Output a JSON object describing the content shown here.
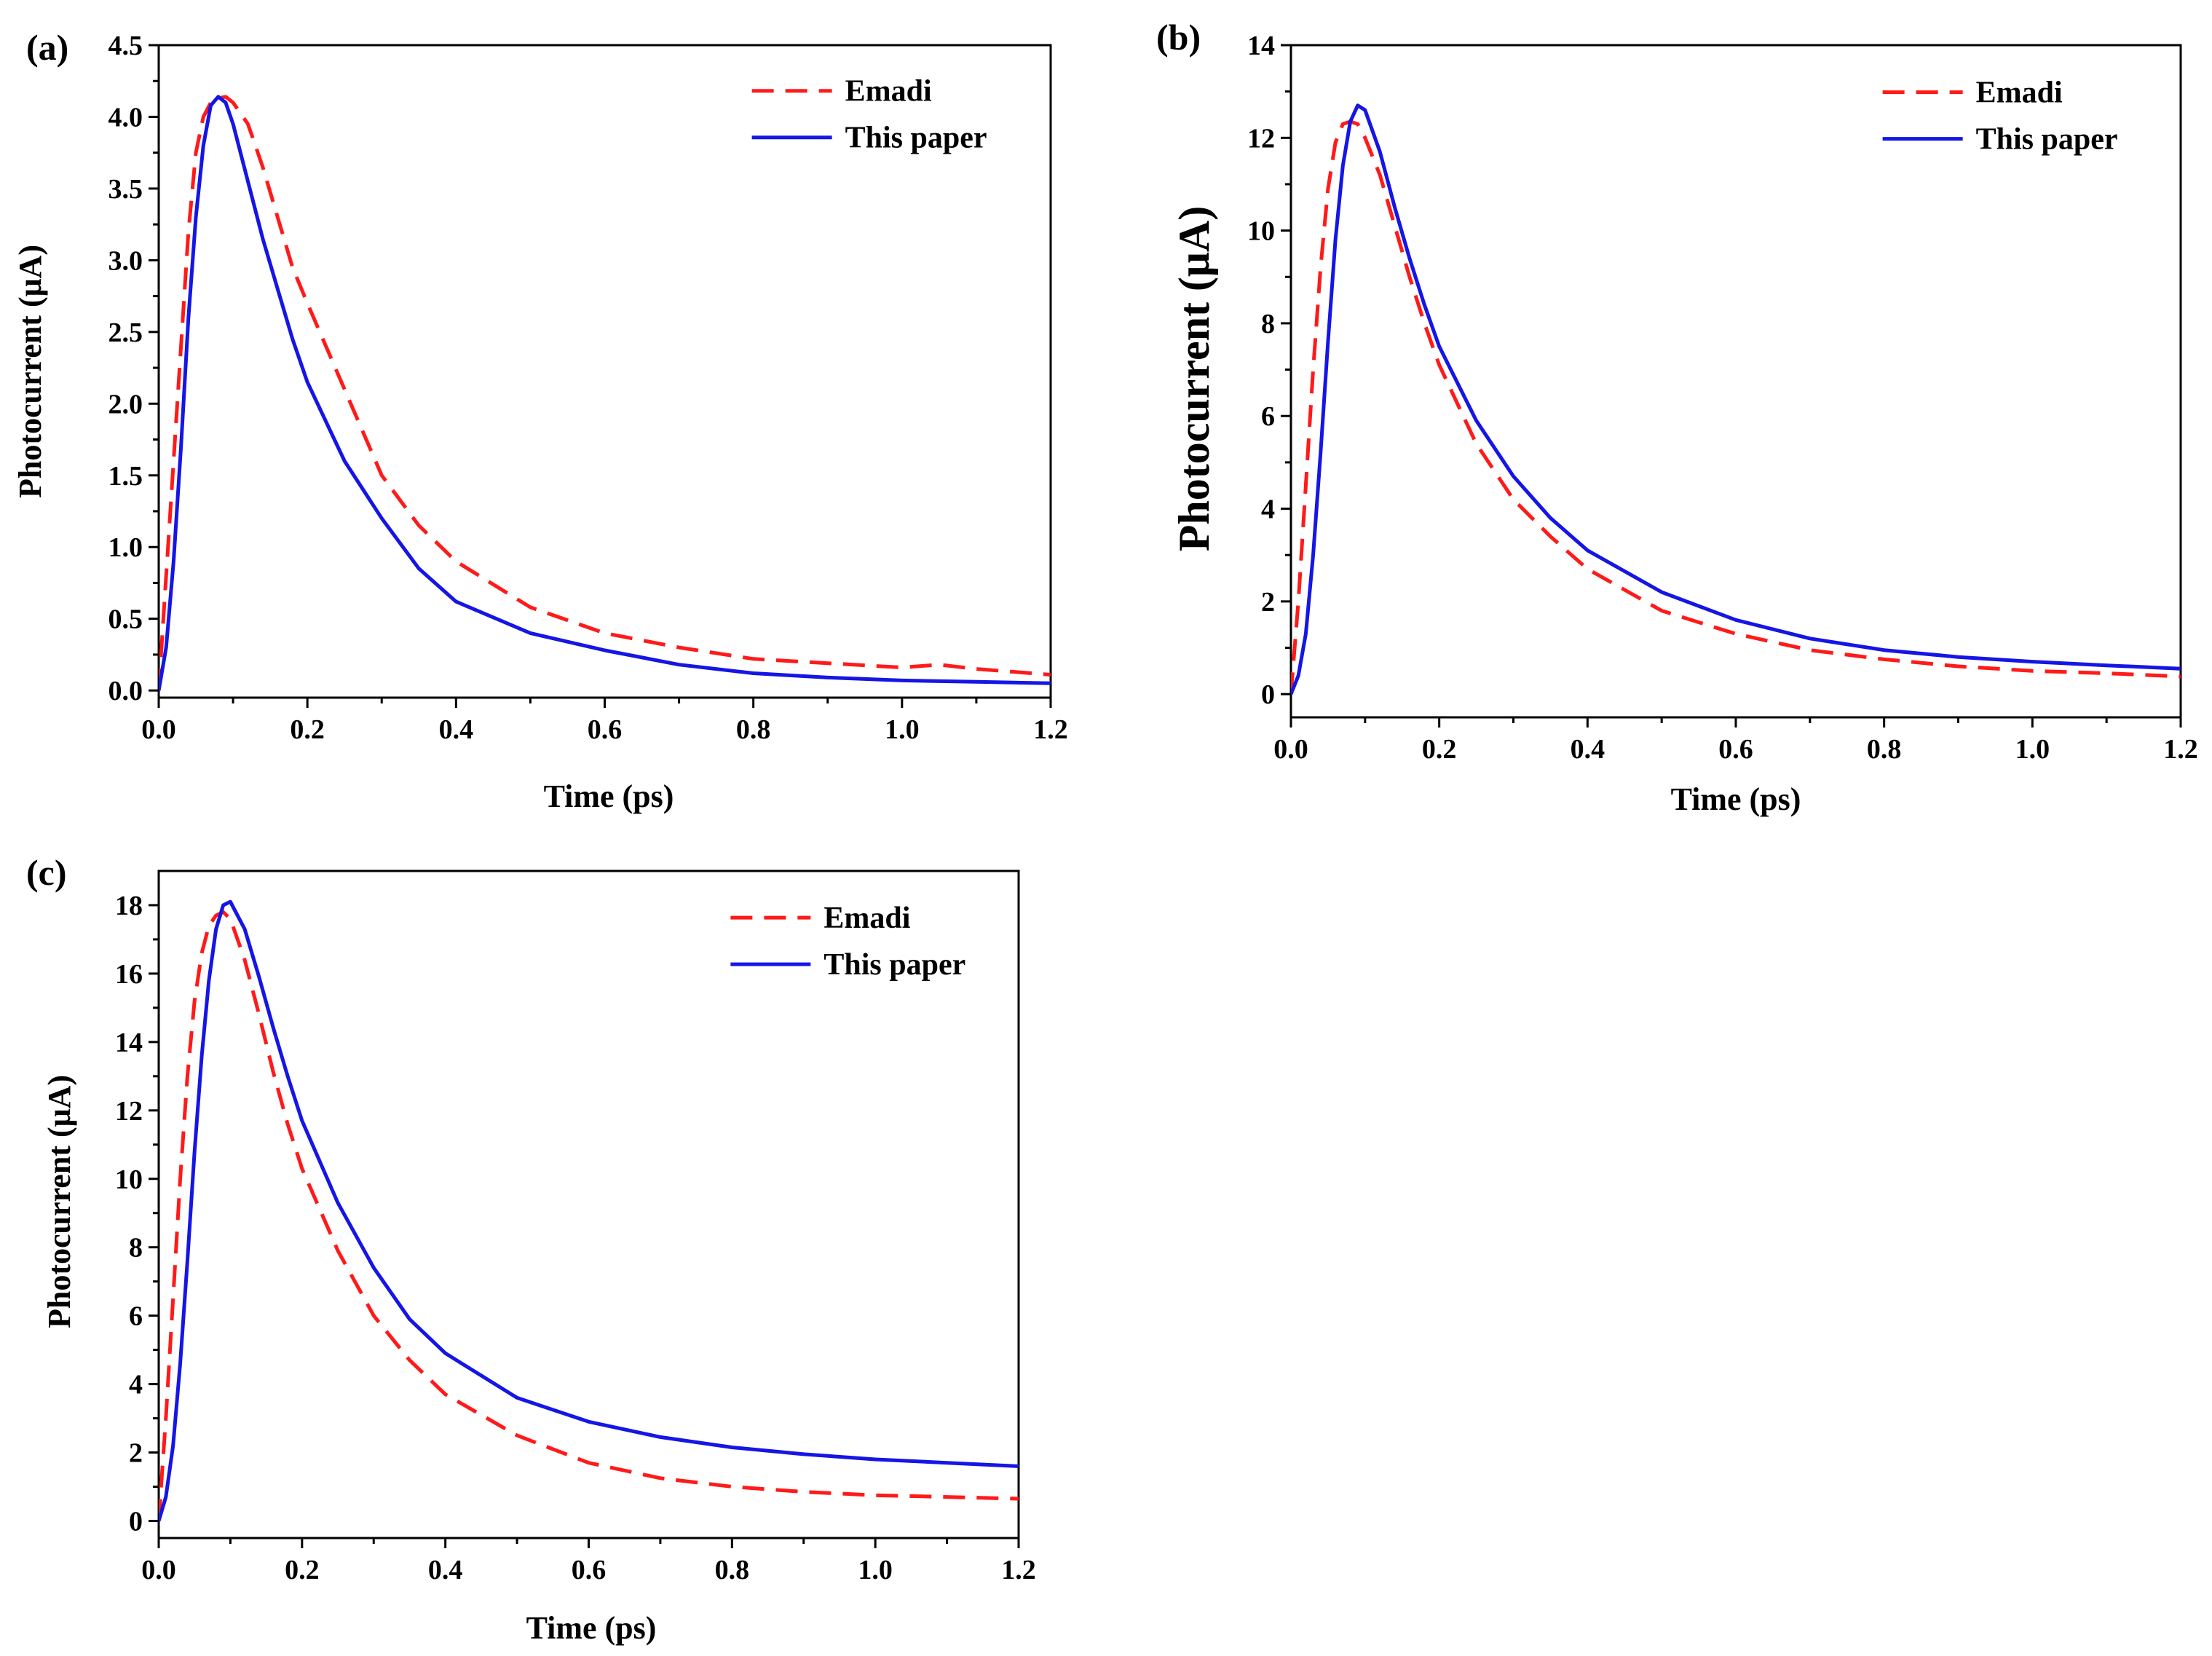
{
  "colors": {
    "emadi": "#ff1a1a",
    "this_paper": "#1515e6",
    "axes": "#000000"
  },
  "chart_data": [
    {
      "type": "line",
      "panel_label": "(a)",
      "xlabel": "Time (ps)",
      "ylabel": "Photocurrent (μA)",
      "xlim": [
        0,
        1.2
      ],
      "ylim": [
        -0.05,
        4.5
      ],
      "xticks": [
        0.0,
        0.2,
        0.4,
        0.6,
        0.8,
        1.0,
        1.2
      ],
      "xtick_labels": [
        "0.0",
        "0.2",
        "0.4",
        "0.6",
        "0.8",
        "1.0",
        "1.2"
      ],
      "yticks": [
        0.0,
        0.5,
        1.0,
        1.5,
        2.0,
        2.5,
        3.0,
        3.5,
        4.0,
        4.5
      ],
      "ytick_labels": [
        "0.0",
        "0.5",
        "1.0",
        "1.5",
        "2.0",
        "2.5",
        "3.0",
        "3.5",
        "4.0",
        "4.5"
      ],
      "legend_position": "top-right",
      "series": [
        {
          "name": "Emadi",
          "style": "dashed",
          "color": "#ff1a1a",
          "x": [
            0,
            0.01,
            0.02,
            0.03,
            0.04,
            0.05,
            0.06,
            0.07,
            0.08,
            0.09,
            0.1,
            0.12,
            0.14,
            0.16,
            0.18,
            0.2,
            0.25,
            0.3,
            0.35,
            0.4,
            0.5,
            0.6,
            0.7,
            0.8,
            0.9,
            1.0,
            1.05,
            1.1,
            1.2
          ],
          "y": [
            0.0,
            0.8,
            1.6,
            2.4,
            3.2,
            3.75,
            4.0,
            4.1,
            4.13,
            4.14,
            4.1,
            3.95,
            3.65,
            3.3,
            2.95,
            2.7,
            2.1,
            1.5,
            1.15,
            0.9,
            0.58,
            0.4,
            0.3,
            0.22,
            0.19,
            0.16,
            0.18,
            0.15,
            0.11
          ]
        },
        {
          "name": "This paper",
          "style": "solid",
          "color": "#1515e6",
          "x": [
            0,
            0.01,
            0.02,
            0.03,
            0.04,
            0.05,
            0.06,
            0.07,
            0.08,
            0.09,
            0.1,
            0.12,
            0.14,
            0.16,
            0.18,
            0.2,
            0.25,
            0.3,
            0.35,
            0.4,
            0.5,
            0.6,
            0.7,
            0.8,
            0.9,
            1.0,
            1.1,
            1.2
          ],
          "y": [
            0.0,
            0.3,
            0.9,
            1.7,
            2.6,
            3.3,
            3.8,
            4.08,
            4.14,
            4.1,
            3.95,
            3.55,
            3.15,
            2.8,
            2.45,
            2.15,
            1.6,
            1.2,
            0.85,
            0.62,
            0.4,
            0.28,
            0.18,
            0.12,
            0.09,
            0.07,
            0.06,
            0.05
          ]
        }
      ]
    },
    {
      "type": "line",
      "panel_label": "(b)",
      "xlabel": "Time (ps)",
      "ylabel": "Photocurrent (μA)",
      "xlim": [
        0,
        1.2
      ],
      "ylim": [
        -0.5,
        14
      ],
      "xticks": [
        0.0,
        0.2,
        0.4,
        0.6,
        0.8,
        1.0,
        1.2
      ],
      "xtick_labels": [
        "0.0",
        "0.2",
        "0.4",
        "0.6",
        "0.8",
        "1.0",
        "1.2"
      ],
      "yticks": [
        0,
        2,
        4,
        6,
        8,
        10,
        12,
        14
      ],
      "ytick_labels": [
        "0",
        "2",
        "4",
        "6",
        "8",
        "10",
        "12",
        "14"
      ],
      "legend_position": "top-right",
      "series": [
        {
          "name": "Emadi",
          "style": "dashed",
          "color": "#ff1a1a",
          "x": [
            0,
            0.01,
            0.02,
            0.03,
            0.04,
            0.05,
            0.06,
            0.07,
            0.08,
            0.09,
            0.1,
            0.12,
            0.14,
            0.16,
            0.18,
            0.2,
            0.25,
            0.3,
            0.35,
            0.4,
            0.5,
            0.6,
            0.7,
            0.8,
            0.9,
            1.0,
            1.1,
            1.2
          ],
          "y": [
            0.0,
            2.0,
            4.5,
            7.0,
            9.2,
            10.9,
            11.9,
            12.3,
            12.35,
            12.3,
            12.0,
            11.2,
            10.1,
            9.0,
            8.0,
            7.1,
            5.4,
            4.2,
            3.4,
            2.7,
            1.8,
            1.3,
            0.95,
            0.75,
            0.6,
            0.5,
            0.45,
            0.38
          ]
        },
        {
          "name": "This paper",
          "style": "solid",
          "color": "#1515e6",
          "x": [
            0,
            0.01,
            0.02,
            0.03,
            0.04,
            0.05,
            0.06,
            0.07,
            0.08,
            0.09,
            0.1,
            0.12,
            0.14,
            0.16,
            0.18,
            0.2,
            0.25,
            0.3,
            0.35,
            0.4,
            0.5,
            0.6,
            0.7,
            0.8,
            0.9,
            1.0,
            1.1,
            1.2
          ],
          "y": [
            0.0,
            0.4,
            1.3,
            3.0,
            5.2,
            7.6,
            9.8,
            11.4,
            12.35,
            12.7,
            12.6,
            11.7,
            10.5,
            9.4,
            8.4,
            7.5,
            5.9,
            4.7,
            3.8,
            3.1,
            2.2,
            1.6,
            1.2,
            0.95,
            0.8,
            0.7,
            0.62,
            0.55
          ]
        }
      ]
    },
    {
      "type": "line",
      "panel_label": "(c)",
      "xlabel": "Time (ps)",
      "ylabel": "Photocurrent (μA)",
      "xlim": [
        0,
        1.2
      ],
      "ylim": [
        -0.5,
        19
      ],
      "xticks": [
        0.0,
        0.2,
        0.4,
        0.6,
        0.8,
        1.0,
        1.2
      ],
      "xtick_labels": [
        "0.0",
        "0.2",
        "0.4",
        "0.6",
        "0.8",
        "1.0",
        "1.2"
      ],
      "yticks": [
        0,
        2,
        4,
        6,
        8,
        10,
        12,
        14,
        16,
        18
      ],
      "ytick_labels": [
        "0",
        "2",
        "4",
        "6",
        "8",
        "10",
        "12",
        "14",
        "16",
        "18"
      ],
      "legend_position": "top-right",
      "series": [
        {
          "name": "Emadi",
          "style": "dashed",
          "color": "#ff1a1a",
          "x": [
            0,
            0.01,
            0.02,
            0.03,
            0.04,
            0.05,
            0.06,
            0.07,
            0.08,
            0.09,
            0.1,
            0.12,
            0.14,
            0.16,
            0.18,
            0.2,
            0.25,
            0.3,
            0.35,
            0.4,
            0.5,
            0.6,
            0.7,
            0.8,
            0.9,
            1.0,
            1.1,
            1.2
          ],
          "y": [
            0.0,
            3.0,
            6.5,
            10.0,
            13.0,
            15.2,
            16.6,
            17.4,
            17.7,
            17.8,
            17.6,
            16.4,
            14.8,
            13.1,
            11.6,
            10.3,
            7.9,
            6.0,
            4.7,
            3.7,
            2.5,
            1.7,
            1.25,
            1.0,
            0.85,
            0.75,
            0.7,
            0.65
          ]
        },
        {
          "name": "This paper",
          "style": "solid",
          "color": "#1515e6",
          "x": [
            0,
            0.01,
            0.02,
            0.03,
            0.04,
            0.05,
            0.06,
            0.07,
            0.08,
            0.09,
            0.1,
            0.12,
            0.14,
            0.16,
            0.18,
            0.2,
            0.25,
            0.3,
            0.35,
            0.4,
            0.5,
            0.6,
            0.7,
            0.8,
            0.9,
            1.0,
            1.1,
            1.2
          ],
          "y": [
            0.0,
            0.7,
            2.2,
            4.6,
            7.6,
            10.8,
            13.6,
            15.8,
            17.3,
            18.0,
            18.1,
            17.3,
            15.9,
            14.4,
            13.0,
            11.7,
            9.3,
            7.4,
            5.9,
            4.9,
            3.6,
            2.9,
            2.45,
            2.15,
            1.95,
            1.8,
            1.7,
            1.6
          ]
        }
      ]
    }
  ]
}
